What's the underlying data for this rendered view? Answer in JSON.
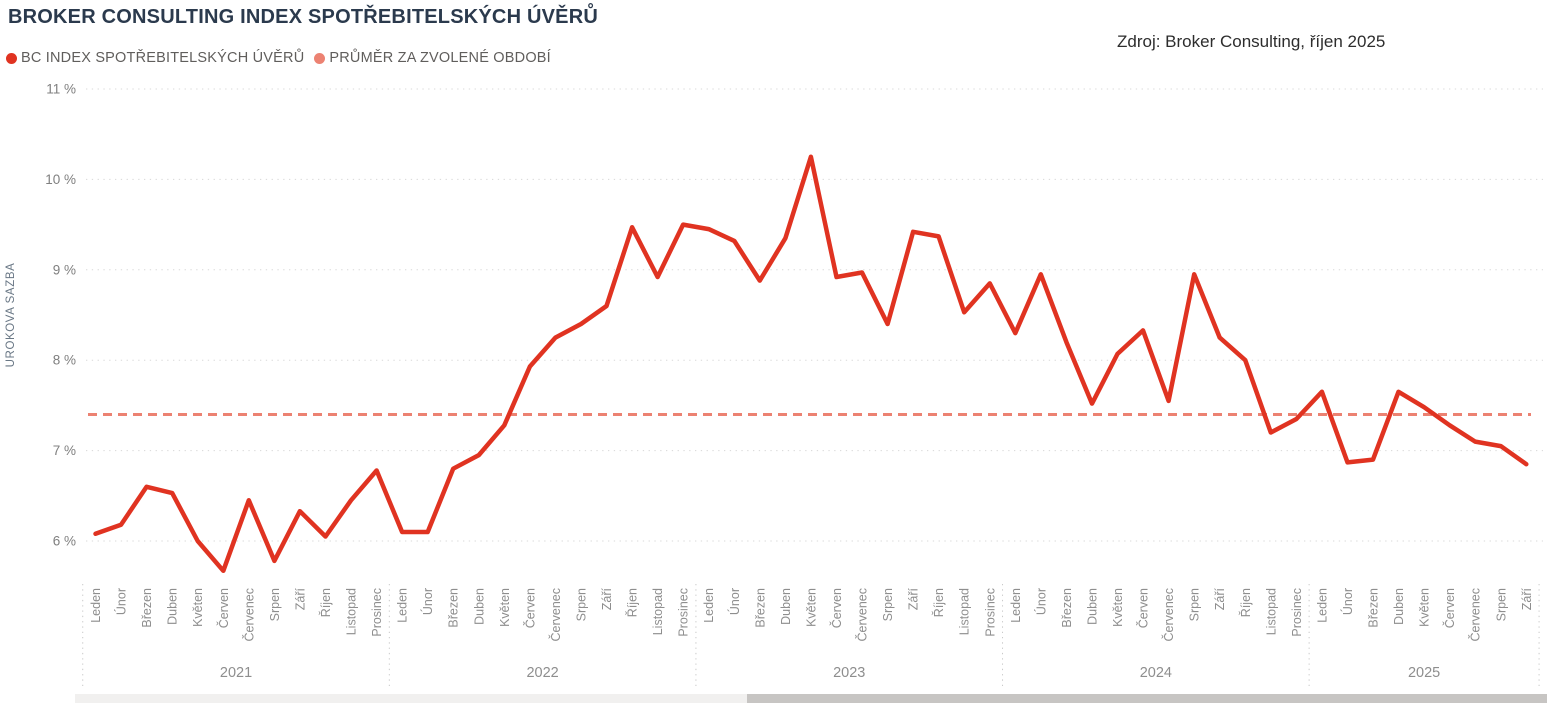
{
  "header": {
    "title": "BROKER CONSULTING INDEX SPOTŘEBITELSKÝCH ÚVĚRŮ",
    "source": "Zdroj: Broker Consulting, říjen 2025"
  },
  "legend": {
    "items": [
      {
        "label": "BC INDEX SPOTŘEBITELSKÝCH ÚVĚRŮ",
        "color": "#e03321"
      },
      {
        "label": "PRŮMĚR ZA ZVOLENÉ OBDOBÍ",
        "color": "#ec8272"
      }
    ]
  },
  "colors": {
    "line": "#e03321",
    "average": "#ec8272",
    "grid": "#d8d8d8",
    "separator": "#c9c9c9",
    "month_label": "#8e8e8e",
    "year_label": "#8e8e8e",
    "ytick_label": "#7f7f7f",
    "yaxis_title": "#697785"
  },
  "chart_data": {
    "type": "line",
    "title": "BROKER CONSULTING INDEX SPOTŘEBITELSKÝCH ÚVĚRŮ",
    "xlabel": "",
    "ylabel": "UROKOVA SAZBA",
    "ylim": [
      5.5,
      11
    ],
    "yticks": [
      6,
      7,
      8,
      9,
      10,
      11
    ],
    "ytick_labels": [
      "6 %",
      "7 %",
      "8 %",
      "9 %",
      "10 %",
      "11 %"
    ],
    "grid": "horizontal-dotted",
    "legend_position": "top-left",
    "years": [
      {
        "year": "2021",
        "months": [
          "Leden",
          "Únor",
          "Březen",
          "Duben",
          "Květen",
          "Červen",
          "Červenec",
          "Srpen",
          "Září",
          "Říjen",
          "Listopad",
          "Prosinec"
        ]
      },
      {
        "year": "2022",
        "months": [
          "Leden",
          "Únor",
          "Březen",
          "Duben",
          "Květen",
          "Červen",
          "Červenec",
          "Srpen",
          "Září",
          "Říjen",
          "Listopad",
          "Prosinec"
        ]
      },
      {
        "year": "2023",
        "months": [
          "Leden",
          "Únor",
          "Březen",
          "Duben",
          "Květen",
          "Červen",
          "Červenec",
          "Srpen",
          "Září",
          "Říjen",
          "Listopad",
          "Prosinec"
        ]
      },
      {
        "year": "2024",
        "months": [
          "Leden",
          "Únor",
          "Březen",
          "Duben",
          "Květen",
          "Červen",
          "Červenec",
          "Srpen",
          "Září",
          "Říjen",
          "Listopad",
          "Prosinec"
        ]
      },
      {
        "year": "2025",
        "months": [
          "Leden",
          "Únor",
          "Březen",
          "Duben",
          "Květen",
          "Červen",
          "Červenec",
          "Srpen",
          "Září"
        ]
      }
    ],
    "series": [
      {
        "name": "BC INDEX SPOTŘEBITELSKÝCH ÚVĚRŮ",
        "color": "#e03321",
        "style": "solid",
        "values": [
          6.08,
          6.18,
          6.6,
          6.53,
          6.0,
          5.67,
          6.45,
          5.78,
          6.33,
          6.05,
          6.45,
          6.78,
          6.1,
          6.1,
          6.8,
          6.95,
          7.28,
          7.93,
          8.25,
          8.4,
          8.6,
          9.47,
          8.92,
          9.5,
          9.45,
          9.32,
          8.88,
          9.35,
          10.25,
          8.92,
          8.97,
          8.4,
          9.42,
          9.37,
          8.53,
          8.85,
          8.3,
          8.95,
          8.2,
          7.52,
          8.07,
          8.33,
          7.55,
          8.95,
          8.25,
          8.0,
          7.2,
          7.35,
          7.65,
          6.87,
          6.9,
          7.65,
          7.48,
          7.28,
          7.1,
          7.05,
          6.85
        ]
      },
      {
        "name": "PRŮMĚR ZA ZVOLENÉ OBDOBÍ",
        "color": "#ec8272",
        "style": "dashed",
        "value": 7.4
      }
    ]
  },
  "scrollbar": {
    "orientation": "horizontal",
    "thumb_position": "right-half"
  }
}
